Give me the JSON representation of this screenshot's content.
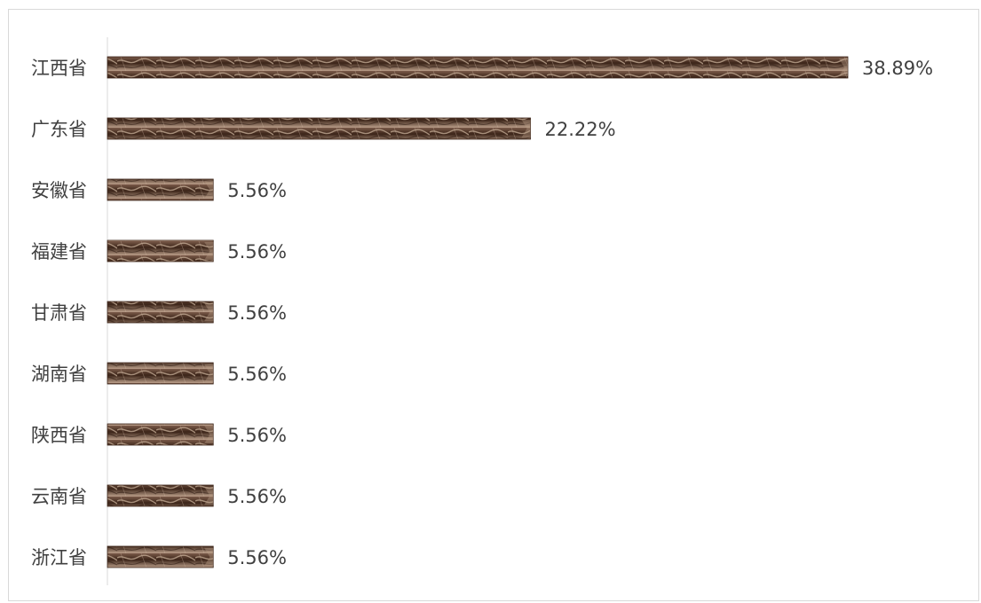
{
  "chart_data": {
    "type": "bar",
    "orientation": "horizontal",
    "categories": [
      "江西省",
      "广东省",
      "安徽省",
      "福建省",
      "甘肃省",
      "湖南省",
      "陕西省",
      "云南省",
      "浙江省"
    ],
    "values": [
      38.89,
      22.22,
      5.56,
      5.56,
      5.56,
      5.56,
      5.56,
      5.56,
      5.56
    ],
    "data_labels": [
      "38.89%",
      "22.22%",
      "5.56%",
      "5.56%",
      "5.56%",
      "5.56%",
      "5.56%",
      "5.56%",
      "5.56%"
    ],
    "value_unit": "%",
    "title": "",
    "xlabel": "",
    "ylabel": "",
    "xlim": [
      0,
      40
    ],
    "grid": false,
    "legend": "none",
    "bar_colors": {
      "dark": "#3b2418",
      "mid": "#7a5a49",
      "light": "#b99d88"
    },
    "axis_color": "#d9d9d9",
    "text_color": "#404040"
  }
}
